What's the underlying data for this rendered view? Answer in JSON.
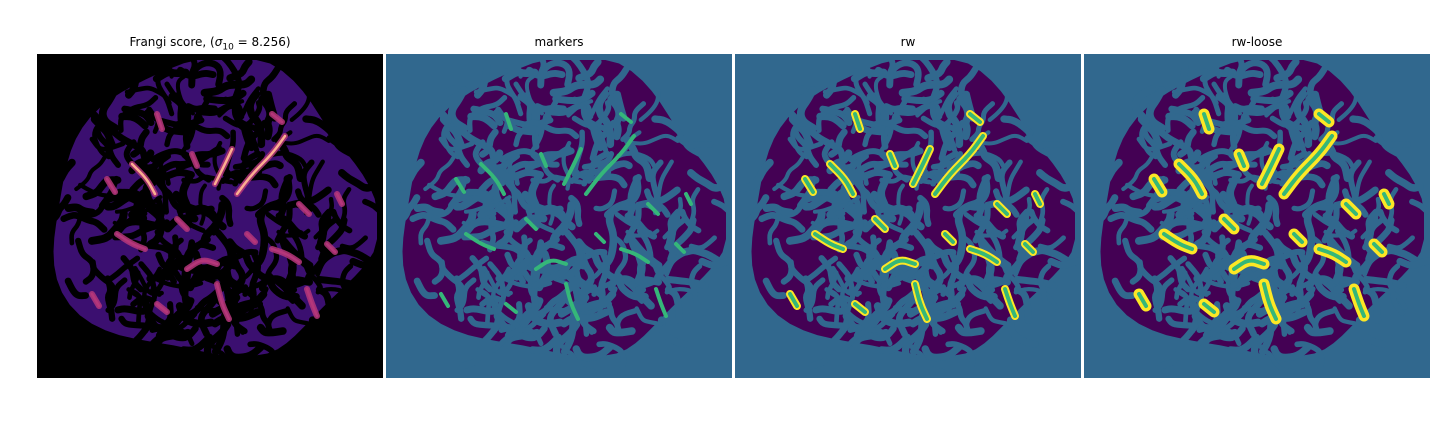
{
  "titles": {
    "frangi_prefix": "Frangi score, (",
    "frangi_sigma": "σ",
    "frangi_sub": "10",
    "frangi_suffix": " = 8.256)",
    "markers": "markers",
    "rw": "rw",
    "rw_loose": "rw-loose"
  },
  "colors": {
    "frangi_background": "#000000",
    "frangi_tissue": "#3b0f70",
    "frangi_mid": "#b5367a",
    "frangi_high": "#fcae91",
    "seg_background": "#31688e",
    "seg_tissue": "#440154",
    "seg_marker": "#35b779",
    "seg_vessel": "#fde725"
  }
}
